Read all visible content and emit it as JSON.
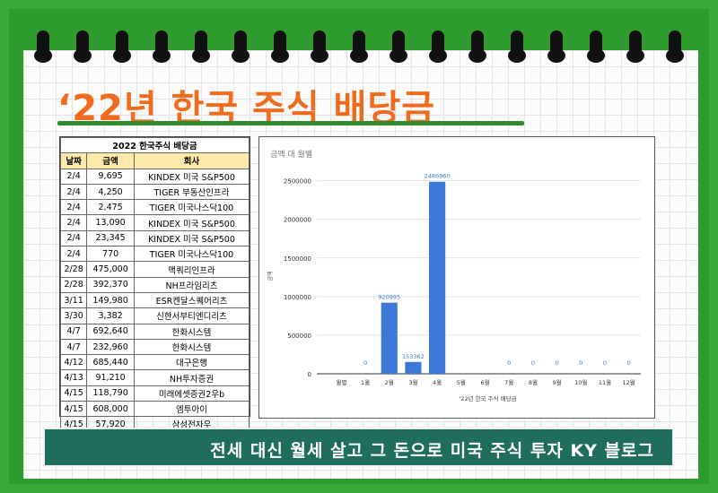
{
  "title": "‘22년 한국 주식  배당금",
  "table": {
    "caption": "2022 한국주식 배당금",
    "headers": [
      "날짜",
      "금액",
      "회사"
    ],
    "rows": [
      [
        "2/4",
        "9,695",
        "KINDEX 미국 S&P500"
      ],
      [
        "2/4",
        "4,250",
        "TIGER 부동산인프라"
      ],
      [
        "2/4",
        "2,475",
        "TIGER 미국나스닥100"
      ],
      [
        "2/4",
        "13,090",
        "KINDEX 미국 S&P500"
      ],
      [
        "2/4",
        "23,345",
        "KINDEX 미국 S&P500"
      ],
      [
        "2/4",
        "770",
        "TIGER 미국나스닥100"
      ],
      [
        "2/28",
        "475,000",
        "맥쿼리인프라"
      ],
      [
        "2/28",
        "392,370",
        "NH프라임리츠"
      ],
      [
        "3/11",
        "149,980",
        "ESR켄달스퀘어리츠"
      ],
      [
        "3/30",
        "3,382",
        "신한서부티엔디리츠"
      ],
      [
        "4/7",
        "692,640",
        "한화시스템"
      ],
      [
        "4/7",
        "232,960",
        "한화시스템"
      ],
      [
        "4/12",
        "685,440",
        "대구은행"
      ],
      [
        "4/13",
        "91,210",
        "NH투자증권"
      ],
      [
        "4/15",
        "118,790",
        "미래에셋증권2우b"
      ],
      [
        "4/15",
        "608,000",
        "엠투아이"
      ],
      [
        "4/15",
        "57,920",
        "삼성전자우"
      ]
    ]
  },
  "chart_data": {
    "type": "bar",
    "title": "금액 대 월별",
    "xlabel": "'22년 한국 주식 배당금",
    "ylabel": "금액",
    "categories": [
      "월별",
      "1월",
      "2월",
      "3월",
      "4월",
      "5월",
      "6월",
      "7월",
      "8월",
      "9월",
      "10월",
      "11월",
      "12월"
    ],
    "values": [
      null,
      0,
      920995,
      153362,
      2486960,
      null,
      null,
      0,
      0,
      0,
      0,
      0,
      0
    ],
    "data_labels": [
      "",
      "0",
      "920995",
      "153362",
      "2486960",
      "",
      "",
      "0",
      "0",
      "0",
      "0",
      "0",
      "0"
    ],
    "yticks": [
      0,
      500000,
      1000000,
      1500000,
      2000000,
      2500000
    ],
    "ylim": [
      0,
      2600000
    ],
    "bar_color": "#3c78d8",
    "label_color": "#3c78d8",
    "grid": true
  },
  "banner": "전세 대신 월세 살고 그 돈으로 미국 주식 투자 KY 블로그"
}
